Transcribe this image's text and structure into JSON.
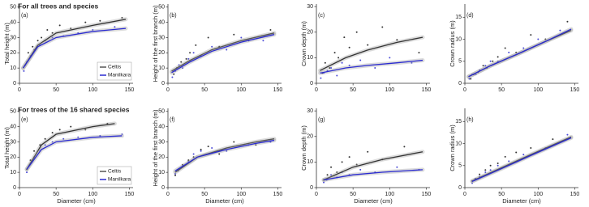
{
  "headings": [
    "For all trees and species",
    "For trees of the 16 shared species"
  ],
  "chart_data": [
    {
      "type": "scatter",
      "panel_label": "(a)",
      "y_label": "Total height (m)",
      "xlim": [
        0,
        155
      ],
      "xticks": [
        0,
        50,
        100,
        150
      ],
      "ylim": [
        0,
        52
      ],
      "yticks": [
        0,
        10,
        20,
        30,
        40,
        50
      ],
      "legend": "lower right",
      "series": [
        {
          "name": "Celtis",
          "color": "#111111",
          "x": [
            8,
            12,
            18,
            25,
            30,
            38,
            45,
            55,
            70,
            90,
            110,
            140
          ],
          "y": [
            12,
            20,
            24,
            28,
            30,
            35,
            33,
            38,
            36,
            40,
            41,
            43
          ],
          "fit_x": [
            5,
            25,
            50,
            100,
            145
          ],
          "fit_y": [
            10,
            25,
            33,
            38,
            42
          ]
        },
        {
          "name": "Manilkara",
          "color": "#2a2ad0",
          "x": [
            6,
            10,
            15,
            20,
            28,
            35,
            45,
            60,
            80,
            100,
            130
          ],
          "y": [
            8,
            14,
            18,
            22,
            25,
            28,
            30,
            31,
            33,
            35,
            37
          ],
          "fit_x": [
            5,
            25,
            50,
            100,
            145
          ],
          "fit_y": [
            10,
            24,
            30,
            34,
            36
          ]
        }
      ]
    },
    {
      "type": "scatter",
      "panel_label": "(b)",
      "y_label": "Height of the first branch (m)",
      "xlim": [
        0,
        155
      ],
      "xticks": [
        0,
        50,
        100,
        150
      ],
      "ylim": [
        0,
        52
      ],
      "yticks": [
        0,
        10,
        20,
        30,
        40,
        50
      ],
      "series": [
        {
          "name": "Celtis",
          "color": "#111111",
          "x": [
            8,
            12,
            18,
            25,
            30,
            38,
            45,
            55,
            70,
            90,
            110,
            140
          ],
          "y": [
            6,
            10,
            14,
            16,
            20,
            25,
            18,
            30,
            24,
            32,
            28,
            35
          ],
          "fit_x": [
            5,
            30,
            60,
            100,
            145
          ],
          "fit_y": [
            8,
            15,
            22,
            28,
            33
          ]
        },
        {
          "name": "Manilkara",
          "color": "#2a2ad0",
          "x": [
            6,
            10,
            15,
            20,
            28,
            35,
            45,
            60,
            80,
            100,
            130
          ],
          "y": [
            4,
            8,
            12,
            10,
            16,
            20,
            18,
            24,
            22,
            30,
            28
          ],
          "fit_x": [
            5,
            30,
            60,
            100,
            145
          ],
          "fit_y": [
            7,
            14,
            21,
            27,
            32
          ]
        }
      ]
    },
    {
      "type": "scatter",
      "panel_label": "(c)",
      "y_label": "Crown depth (m)",
      "xlim": [
        0,
        155
      ],
      "xticks": [
        0,
        50,
        100,
        150
      ],
      "ylim": [
        0,
        31
      ],
      "yticks": [
        0,
        10,
        20,
        30
      ],
      "series": [
        {
          "name": "Celtis",
          "color": "#111111",
          "x": [
            8,
            12,
            18,
            25,
            30,
            38,
            45,
            55,
            70,
            90,
            110,
            140
          ],
          "y": [
            4,
            8,
            6,
            12,
            10,
            18,
            14,
            20,
            15,
            22,
            17,
            12
          ],
          "fit_x": [
            5,
            40,
            70,
            110,
            145
          ],
          "fit_y": [
            5,
            10,
            13,
            16,
            18
          ]
        },
        {
          "name": "Manilkara",
          "color": "#2a2ad0",
          "x": [
            6,
            10,
            15,
            20,
            28,
            35,
            45,
            60,
            80,
            100,
            130
          ],
          "y": [
            2,
            4,
            5,
            6,
            3,
            8,
            7,
            9,
            6,
            10,
            8
          ],
          "fit_x": [
            5,
            40,
            70,
            110,
            145
          ],
          "fit_y": [
            4,
            6,
            7,
            8,
            9
          ]
        }
      ]
    },
    {
      "type": "scatter",
      "panel_label": "(d)",
      "y_label": "Crown radius (m)",
      "xlim": [
        0,
        155
      ],
      "xticks": [
        0,
        50,
        100,
        150
      ],
      "ylim": [
        0,
        18
      ],
      "yticks": [
        0,
        5,
        10,
        15
      ],
      "series": [
        {
          "name": "Celtis",
          "color": "#111111",
          "x": [
            8,
            12,
            18,
            25,
            30,
            38,
            45,
            55,
            70,
            90,
            110,
            140
          ],
          "y": [
            1,
            2,
            2.5,
            4,
            3.5,
            5,
            6,
            8,
            7,
            11,
            10,
            14
          ],
          "fit_x": [
            5,
            35,
            70,
            110,
            145
          ],
          "fit_y": [
            1.5,
            4,
            6.5,
            9.5,
            12
          ]
        },
        {
          "name": "Manilkara",
          "color": "#2a2ad0",
          "x": [
            6,
            10,
            15,
            20,
            28,
            35,
            45,
            60,
            80,
            100,
            130
          ],
          "y": [
            1,
            2,
            2,
            3,
            4,
            5,
            5,
            7,
            8,
            10,
            12
          ],
          "fit_x": [
            5,
            35,
            70,
            110,
            145
          ],
          "fit_y": [
            1.5,
            4,
            6.5,
            9.5,
            12.3
          ]
        }
      ]
    },
    {
      "type": "scatter",
      "panel_label": "(e)",
      "y_label": "Total height (m)",
      "x_label": "Diameter (cm)",
      "xlim": [
        0,
        155
      ],
      "xticks": [
        0,
        50,
        100,
        150
      ],
      "ylim": [
        0,
        52
      ],
      "yticks": [
        0,
        10,
        20,
        30,
        40,
        50
      ],
      "legend": "lower right",
      "series": [
        {
          "name": "Celtis",
          "color": "#111111",
          "x": [
            10,
            15,
            20,
            28,
            35,
            45,
            55,
            70,
            90,
            120
          ],
          "y": [
            12,
            18,
            24,
            28,
            32,
            36,
            38,
            40,
            38,
            42
          ],
          "fit_x": [
            10,
            30,
            50,
            100,
            130
          ],
          "fit_y": [
            12,
            28,
            35,
            40,
            42
          ]
        },
        {
          "name": "Manilkara",
          "color": "#2a2ad0",
          "x": [
            10,
            14,
            20,
            28,
            35,
            45,
            60,
            80,
            110,
            140
          ],
          "y": [
            10,
            15,
            20,
            24,
            28,
            30,
            32,
            33,
            34,
            35
          ],
          "fit_x": [
            10,
            30,
            50,
            100,
            140
          ],
          "fit_y": [
            12,
            25,
            30,
            33,
            34
          ]
        }
      ]
    },
    {
      "type": "scatter",
      "panel_label": "(f)",
      "y_label": "Height of the first branch (m)",
      "x_label": "Diameter (cm)",
      "xlim": [
        0,
        155
      ],
      "xticks": [
        0,
        50,
        100,
        150
      ],
      "ylim": [
        0,
        52
      ],
      "yticks": [
        0,
        10,
        20,
        30,
        40,
        50
      ],
      "series": [
        {
          "name": "Celtis",
          "color": "#111111",
          "x": [
            10,
            15,
            20,
            28,
            35,
            45,
            55,
            70,
            90,
            120
          ],
          "y": [
            8,
            12,
            15,
            18,
            20,
            25,
            27,
            22,
            30,
            28
          ],
          "fit_x": [
            10,
            40,
            80,
            120,
            145
          ],
          "fit_y": [
            10,
            20,
            26,
            30,
            32
          ]
        },
        {
          "name": "Manilkara",
          "color": "#2a2ad0",
          "x": [
            10,
            14,
            20,
            28,
            35,
            45,
            60,
            80,
            110,
            140
          ],
          "y": [
            9,
            11,
            14,
            17,
            22,
            24,
            26,
            24,
            28,
            30
          ],
          "fit_x": [
            10,
            40,
            80,
            120,
            145
          ],
          "fit_y": [
            11,
            20,
            25,
            29,
            31
          ]
        }
      ]
    },
    {
      "type": "scatter",
      "panel_label": "(g)",
      "y_label": "Crown depth (m)",
      "x_label": "Diameter (cm)",
      "xlim": [
        0,
        155
      ],
      "xticks": [
        0,
        50,
        100,
        150
      ],
      "ylim": [
        0,
        31
      ],
      "yticks": [
        0,
        10,
        20,
        30
      ],
      "series": [
        {
          "name": "Celtis",
          "color": "#111111",
          "x": [
            10,
            15,
            20,
            28,
            35,
            45,
            55,
            70,
            90,
            120
          ],
          "y": [
            3,
            5,
            8,
            6,
            10,
            12,
            9,
            14,
            11,
            16
          ],
          "fit_x": [
            10,
            50,
            90,
            145
          ],
          "fit_y": [
            3,
            8,
            11,
            14
          ]
        },
        {
          "name": "Manilkara",
          "color": "#2a2ad0",
          "x": [
            10,
            14,
            20,
            28,
            35,
            45,
            60,
            80,
            110,
            140
          ],
          "y": [
            2,
            3,
            5,
            4,
            6,
            5,
            7,
            6,
            8,
            7
          ],
          "fit_x": [
            10,
            50,
            90,
            145
          ],
          "fit_y": [
            3,
            5,
            6,
            7
          ]
        }
      ]
    },
    {
      "type": "scatter",
      "panel_label": "(h)",
      "y_label": "Crown radius (m)",
      "x_label": "Diameter (cm)",
      "xlim": [
        0,
        155
      ],
      "xticks": [
        0,
        50,
        100,
        150
      ],
      "ylim": [
        0,
        18
      ],
      "yticks": [
        0,
        5,
        10,
        15
      ],
      "series": [
        {
          "name": "Celtis",
          "color": "#111111",
          "x": [
            10,
            15,
            20,
            28,
            35,
            45,
            55,
            70,
            90,
            120
          ],
          "y": [
            1.5,
            2,
            3,
            4,
            5,
            5.5,
            7,
            8,
            9,
            11
          ],
          "fit_x": [
            10,
            50,
            90,
            145
          ],
          "fit_y": [
            1.5,
            4.5,
            7.5,
            11.5
          ]
        },
        {
          "name": "Manilkara",
          "color": "#2a2ad0",
          "x": [
            10,
            14,
            20,
            28,
            35,
            45,
            60,
            80,
            110,
            140
          ],
          "y": [
            1,
            2,
            2.5,
            3.5,
            4,
            5,
            6,
            7.5,
            9,
            12
          ],
          "fit_x": [
            10,
            50,
            90,
            145
          ],
          "fit_y": [
            1.4,
            4.3,
            7.3,
            11.3
          ]
        }
      ]
    }
  ]
}
